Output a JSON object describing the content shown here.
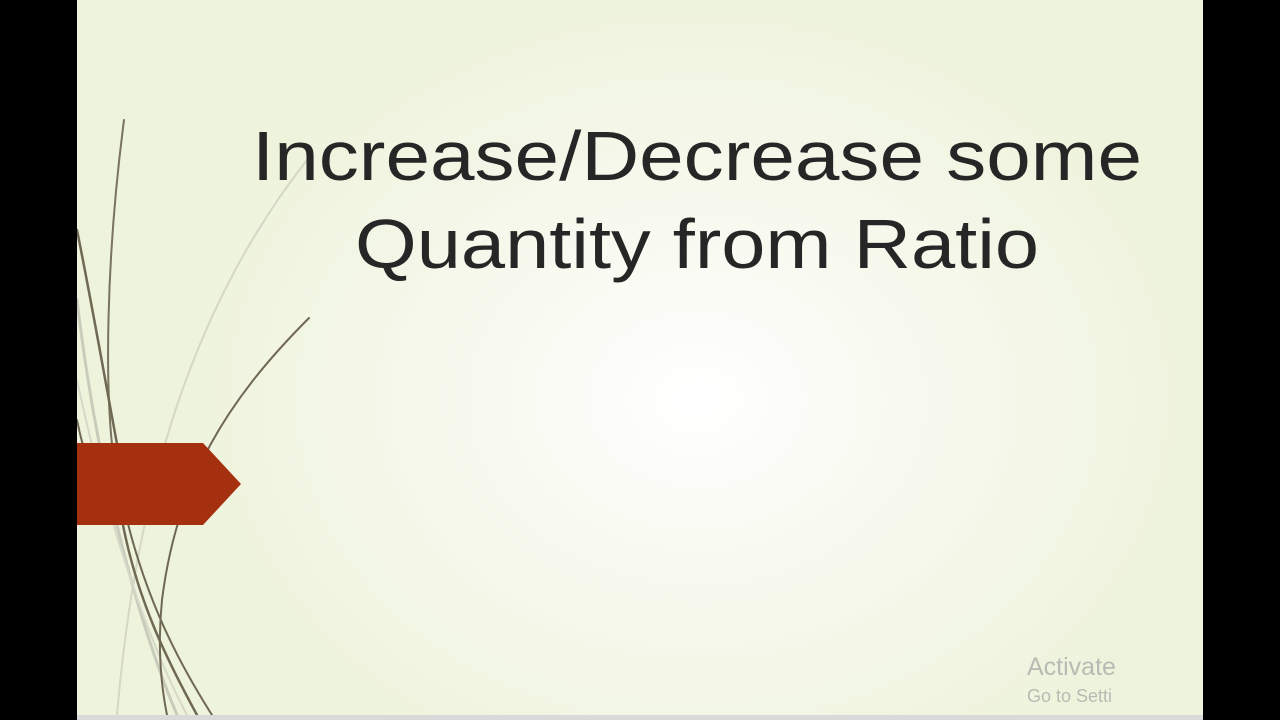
{
  "slide": {
    "title_lines": [
      "Increase/Decrease some",
      "Quantity from Ratio"
    ],
    "accent_color": "#a5300f",
    "line_color": "#6f6853"
  },
  "watermark": {
    "line1": "Activate",
    "line2": "Go to Setti"
  }
}
